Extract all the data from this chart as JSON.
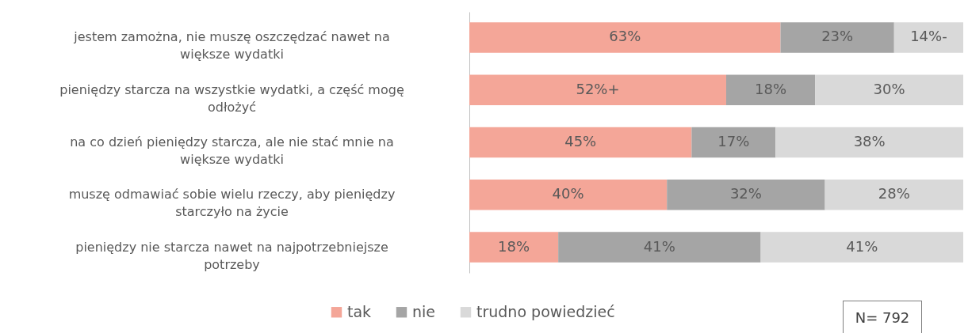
{
  "chart_data": {
    "type": "bar",
    "orientation": "horizontal",
    "stacked": true,
    "legend": "bottom",
    "categories": [
      "jestem zamożna, nie muszę oszczędzać nawet na większe wydatki",
      "pieniędzy starcza na wszystkie wydatki, a część mogę odłożyć",
      "na co dzień pieniędzy starcza, ale nie stać mnie na większe wydatki",
      "muszę odmawiać sobie wielu rzeczy, aby pieniędzy starczyło na życie",
      "pieniędzy nie starcza nawet na najpotrzebniejsze potrzeby"
    ],
    "series": [
      {
        "name": "tak",
        "color": "#f4a698",
        "values": [
          63,
          52,
          45,
          40,
          18
        ],
        "value_labels": [
          "63%",
          "52%+",
          "45%",
          "40%",
          "18%"
        ]
      },
      {
        "name": "nie",
        "color": "#a5a5a5",
        "values": [
          23,
          18,
          17,
          32,
          41
        ],
        "value_labels": [
          "23%",
          "18%",
          "17%",
          "32%",
          "41%"
        ]
      },
      {
        "name": "trudno powiedzieć",
        "color": "#d9d9d9",
        "values": [
          14,
          30,
          38,
          28,
          41
        ],
        "value_labels": [
          "14%-",
          "30%",
          "38%",
          "28%",
          "41%"
        ]
      }
    ],
    "annotations": [
      "N= 792"
    ]
  }
}
